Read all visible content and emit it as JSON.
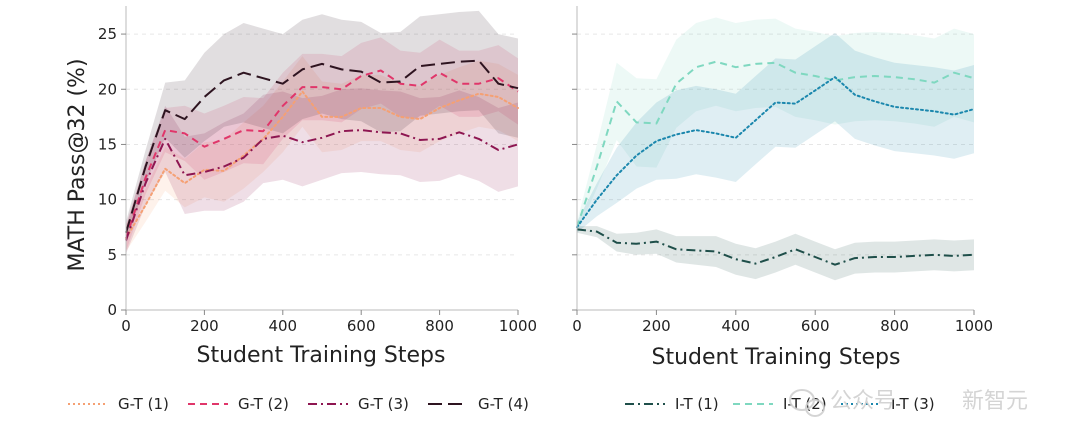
{
  "chart_data": [
    {
      "type": "line",
      "panel": "left",
      "title": "",
      "xlabel": "Student Training Steps",
      "ylabel": "MATH Pass@32 (%)",
      "xlim": [
        0,
        1000
      ],
      "ylim": [
        0,
        27
      ],
      "xticks": [
        0,
        200,
        400,
        600,
        800,
        1000
      ],
      "yticks": [
        0,
        5,
        10,
        15,
        20,
        25
      ],
      "grid": "horizontal dashed",
      "legend_position": "bottom",
      "series": [
        {
          "name": "G-T (1)",
          "color": "#f5a073",
          "dash": "dotted",
          "x": [
            0,
            50,
            100,
            150,
            200,
            250,
            300,
            350,
            400,
            450,
            500,
            550,
            600,
            650,
            700,
            750,
            800,
            850,
            900,
            950,
            1000
          ],
          "values": [
            6.5,
            9.5,
            12.8,
            11.5,
            12.7,
            12.6,
            14.0,
            15.5,
            17.5,
            19.8,
            17.5,
            17.5,
            18.3,
            18.3,
            17.5,
            17.3,
            18.3,
            19.0,
            19.6,
            19.3,
            18.3
          ],
          "band": [
            1.2,
            1.5,
            2.0,
            2.2,
            2.5,
            2.8,
            3.0,
            3.0,
            3.2,
            3.2,
            3.2,
            3.0,
            3.0,
            3.0,
            3.0,
            3.0,
            3.0,
            3.0,
            3.0,
            3.0,
            3.0
          ]
        },
        {
          "name": "G-T (2)",
          "color": "#e0366a",
          "dash": "dashed",
          "x": [
            0,
            50,
            100,
            150,
            200,
            250,
            300,
            350,
            400,
            450,
            500,
            550,
            600,
            650,
            700,
            750,
            800,
            850,
            900,
            950,
            1000
          ],
          "values": [
            6.5,
            12.0,
            16.3,
            16.0,
            14.8,
            15.5,
            16.3,
            16.2,
            18.5,
            20.2,
            20.2,
            20.0,
            21.2,
            21.7,
            20.5,
            20.3,
            21.5,
            20.5,
            20.5,
            21.0,
            19.8
          ],
          "band": [
            1.2,
            1.5,
            2.0,
            2.5,
            3.0,
            3.0,
            3.0,
            3.0,
            3.0,
            3.0,
            3.0,
            3.0,
            3.0,
            3.0,
            3.0,
            3.0,
            3.0,
            3.0,
            3.0,
            3.0,
            3.0
          ]
        },
        {
          "name": "G-T (3)",
          "color": "#8e1651",
          "dash": "dashdot",
          "x": [
            0,
            50,
            100,
            150,
            200,
            250,
            300,
            350,
            400,
            450,
            500,
            550,
            600,
            650,
            700,
            750,
            800,
            850,
            900,
            950,
            1000
          ],
          "values": [
            6.3,
            11.5,
            15.5,
            12.2,
            12.5,
            13.0,
            13.8,
            15.5,
            15.8,
            15.2,
            15.6,
            16.2,
            16.3,
            16.1,
            16.0,
            15.4,
            15.5,
            16.1,
            15.5,
            14.5,
            15.0
          ],
          "band": [
            1.2,
            2.0,
            3.0,
            3.5,
            3.5,
            4.0,
            4.0,
            4.0,
            4.0,
            4.0,
            3.8,
            3.8,
            3.8,
            3.8,
            3.8,
            3.8,
            3.8,
            3.8,
            3.8,
            3.8,
            3.8
          ]
        },
        {
          "name": "G-T (4)",
          "color": "#2e1420",
          "dash": "longdash",
          "x": [
            0,
            50,
            100,
            150,
            200,
            250,
            300,
            350,
            400,
            450,
            500,
            550,
            600,
            650,
            700,
            750,
            800,
            850,
            900,
            950,
            1000
          ],
          "values": [
            7.0,
            13.0,
            18.1,
            17.3,
            19.3,
            20.8,
            21.5,
            21.0,
            20.5,
            21.8,
            22.3,
            21.8,
            21.6,
            20.6,
            20.7,
            22.1,
            22.3,
            22.5,
            22.6,
            20.5,
            20.1
          ],
          "band": [
            1.0,
            1.5,
            2.5,
            3.5,
            4.0,
            4.2,
            4.5,
            4.5,
            4.5,
            4.5,
            4.5,
            4.5,
            4.5,
            4.5,
            4.5,
            4.5,
            4.5,
            4.5,
            4.5,
            4.5,
            4.5
          ]
        }
      ]
    },
    {
      "type": "line",
      "panel": "right",
      "title": "",
      "xlabel": "Student Training Steps",
      "ylabel": "",
      "xlim": [
        0,
        1000
      ],
      "ylim": [
        0,
        27
      ],
      "xticks": [
        0,
        200,
        400,
        600,
        800,
        1000
      ],
      "yticks": [
        0,
        5,
        10,
        15,
        20,
        25
      ],
      "grid": "horizontal dashed",
      "legend_position": "bottom",
      "series": [
        {
          "name": "I-T (1)",
          "color": "#1f4f4a",
          "dash": "dashdot",
          "x": [
            0,
            50,
            100,
            150,
            200,
            250,
            300,
            350,
            400,
            450,
            500,
            550,
            600,
            650,
            700,
            750,
            800,
            850,
            900,
            950,
            1000
          ],
          "values": [
            7.3,
            7.1,
            6.1,
            6.0,
            6.2,
            5.5,
            5.4,
            5.3,
            4.6,
            4.2,
            4.8,
            5.5,
            4.8,
            4.1,
            4.7,
            4.8,
            4.8,
            4.9,
            5.0,
            4.9,
            5.0
          ],
          "band": [
            0.3,
            0.5,
            0.8,
            1.0,
            1.1,
            1.2,
            1.3,
            1.4,
            1.4,
            1.4,
            1.4,
            1.4,
            1.4,
            1.4,
            1.4,
            1.4,
            1.4,
            1.4,
            1.4,
            1.4,
            1.4
          ]
        },
        {
          "name": "I-T (2)",
          "color": "#7fd8c0",
          "dash": "dashed",
          "x": [
            0,
            50,
            100,
            150,
            200,
            250,
            300,
            350,
            400,
            450,
            500,
            550,
            600,
            650,
            700,
            750,
            800,
            850,
            900,
            950,
            1000
          ],
          "values": [
            7.5,
            13.0,
            18.9,
            17.0,
            16.9,
            20.5,
            22.0,
            22.5,
            22.0,
            22.3,
            22.4,
            21.5,
            21.2,
            20.8,
            21.1,
            21.2,
            21.1,
            20.9,
            20.6,
            21.5,
            21.0
          ],
          "band": [
            0.5,
            2.0,
            3.5,
            4.0,
            4.0,
            4.0,
            4.0,
            4.0,
            4.0,
            4.0,
            4.0,
            4.0,
            4.0,
            4.0,
            4.0,
            4.0,
            4.0,
            4.0,
            4.0,
            4.0,
            4.0
          ]
        },
        {
          "name": "I-T (3)",
          "color": "#1b87ad",
          "dash": "dotted",
          "x": [
            0,
            50,
            100,
            150,
            200,
            250,
            300,
            350,
            400,
            450,
            500,
            550,
            600,
            650,
            700,
            750,
            800,
            850,
            900,
            950,
            1000
          ],
          "values": [
            7.5,
            10.0,
            12.2,
            14.0,
            15.3,
            15.9,
            16.3,
            16.0,
            15.6,
            17.2,
            18.8,
            18.7,
            19.9,
            21.1,
            19.5,
            18.9,
            18.4,
            18.2,
            18.0,
            17.7,
            18.2
          ],
          "band": [
            0.5,
            1.5,
            2.5,
            3.0,
            3.5,
            4.0,
            4.0,
            4.0,
            4.0,
            4.0,
            4.0,
            4.0,
            4.0,
            4.0,
            4.0,
            4.0,
            4.0,
            4.0,
            4.0,
            4.0,
            4.0
          ]
        }
      ]
    }
  ],
  "legend": {
    "left": [
      "G-T (1)",
      "G-T (2)",
      "G-T (3)",
      "G-T (4)"
    ],
    "right": [
      "I-T (1)",
      "I-T (2)",
      "I-T (3)"
    ]
  },
  "watermark": {
    "text_1": "公众号",
    "text_2": "新智元"
  }
}
